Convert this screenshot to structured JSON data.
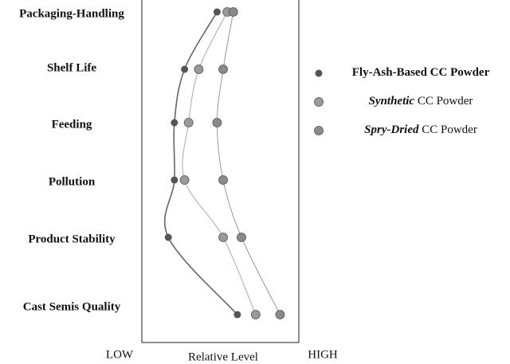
{
  "chart_data": {
    "type": "dot-line",
    "x_label": "Relative Level",
    "categories": [
      "Packaging-Handling",
      "Shelf Life",
      "Feeding",
      "Pollution",
      "Product Stability",
      "Cast Semis Quality"
    ],
    "xlim": [
      0,
      100
    ],
    "xticks": [
      {
        "value": 0,
        "label": "LOW"
      },
      {
        "value": 100,
        "label": "HIGH"
      }
    ],
    "series": [
      {
        "name": "Fly-Ash-Based CC Powder",
        "color": "#555555",
        "line_color": "#666666",
        "emphasis": "all",
        "values": [
          48,
          32,
          27,
          27,
          24,
          58
        ]
      },
      {
        "name": "Synthetic CC Powder",
        "color": "#9a9a9a",
        "line_color": "#aaaaaa",
        "emphasis": "first-word",
        "values": [
          53,
          39,
          34,
          32,
          51,
          67
        ]
      },
      {
        "name": "Spry-Dried CC Powder",
        "color": "#8a8a8a",
        "line_color": "#999999",
        "emphasis": "first-word",
        "values": [
          56,
          51,
          48,
          51,
          60,
          79
        ]
      }
    ]
  }
}
